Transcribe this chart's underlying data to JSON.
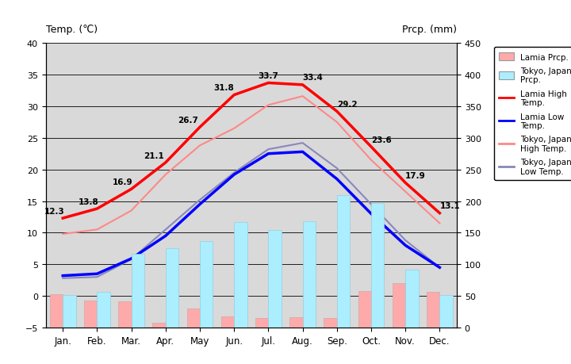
{
  "months": [
    "Jan.",
    "Feb.",
    "Mar.",
    "Apr.",
    "May",
    "Jun.",
    "Jul.",
    "Aug.",
    "Sep.",
    "Oct.",
    "Nov.",
    "Dec."
  ],
  "lamia_high": [
    12.3,
    13.8,
    16.9,
    21.1,
    26.7,
    31.8,
    33.7,
    33.4,
    29.2,
    23.6,
    17.9,
    13.1
  ],
  "lamia_low": [
    3.2,
    3.5,
    5.9,
    9.5,
    14.5,
    19.2,
    22.5,
    22.8,
    18.5,
    13.0,
    8.0,
    4.5
  ],
  "tokyo_high": [
    9.8,
    10.5,
    13.5,
    19.2,
    23.8,
    26.5,
    30.2,
    31.6,
    27.5,
    21.5,
    16.5,
    11.5
  ],
  "tokyo_low": [
    2.8,
    3.0,
    5.8,
    10.5,
    15.2,
    19.5,
    23.2,
    24.2,
    20.2,
    14.5,
    8.8,
    4.5
  ],
  "tokyo_prcp_mm": [
    52,
    56,
    117,
    125,
    137,
    167,
    154,
    168,
    210,
    197,
    92,
    51
  ],
  "lamia_prcp_mm": [
    53,
    43,
    42,
    8,
    30,
    17,
    15,
    16,
    15,
    58,
    70,
    57
  ],
  "bg_color": "#d9d9d9",
  "title_left": "Temp. (℃)",
  "title_right": "Prcp. (mm)",
  "ylim_left": [
    -5,
    40
  ],
  "ylim_right": [
    0,
    450
  ],
  "lamia_high_color": "#ff0000",
  "lamia_low_color": "#0000ff",
  "tokyo_high_color": "#ff8888",
  "tokyo_low_color": "#8888bb",
  "lamia_prcp_color": "#ffaaaa",
  "tokyo_prcp_color": "#aaeeff",
  "grid_color": "#000000",
  "yticks_left": [
    -5,
    0,
    5,
    10,
    15,
    20,
    25,
    30,
    35,
    40
  ],
  "yticks_right": [
    0,
    50,
    100,
    150,
    200,
    250,
    300,
    350,
    400,
    450
  ]
}
